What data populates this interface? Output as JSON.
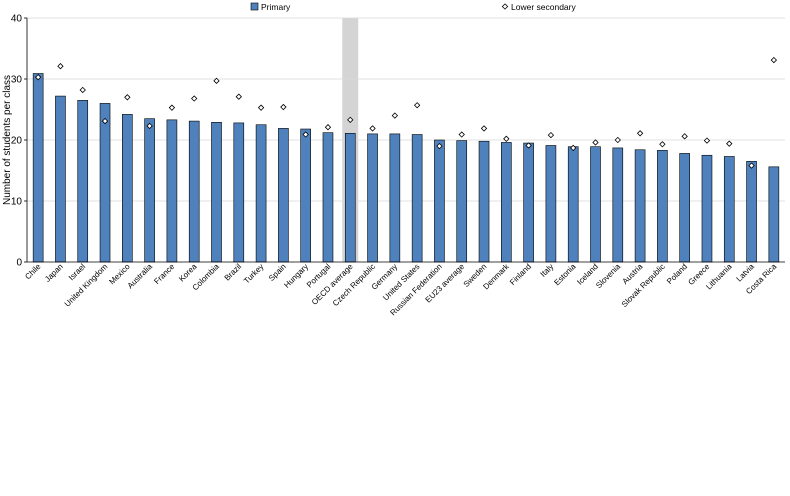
{
  "chart_data": {
    "type": "bar",
    "ylabel": "Number of students per class",
    "ylim": [
      0,
      40
    ],
    "yticks": [
      0,
      10,
      20,
      30,
      40
    ],
    "grid": true,
    "legend_position": "top",
    "highlight_category": "OECD average",
    "categories": [
      "Chile",
      "Japan",
      "Israel",
      "United Kingdom",
      "Mexico",
      "Australia",
      "France",
      "Korea",
      "Colombia",
      "Brazil",
      "Turkey",
      "Spain",
      "Hungary",
      "Portugal",
      "OECD average",
      "Czech Republic",
      "Germany",
      "United States",
      "Russian Federation",
      "EU23 average",
      "Sweden",
      "Denmark",
      "Finland",
      "Italy",
      "Estonia",
      "Iceland",
      "Slovenia",
      "Austria",
      "Slovak Republic",
      "Poland",
      "Greece",
      "Lithuania",
      "Latvia",
      "Costa Rica"
    ],
    "series": [
      {
        "name": "Primary",
        "kind": "bar",
        "color": "#4F81BD",
        "values": [
          30.9,
          27.2,
          26.5,
          26.0,
          24.2,
          23.5,
          23.3,
          23.1,
          22.9,
          22.8,
          22.5,
          21.9,
          21.8,
          21.2,
          21.1,
          21.0,
          21.0,
          20.9,
          20.0,
          19.9,
          19.8,
          19.6,
          19.5,
          19.1,
          18.9,
          18.9,
          18.7,
          18.4,
          18.3,
          17.8,
          17.5,
          17.3,
          16.5,
          15.6
        ]
      },
      {
        "name": "Lower secondary",
        "kind": "marker",
        "color": "#ffffff",
        "values": [
          30.3,
          32.1,
          28.2,
          23.1,
          27.0,
          22.3,
          25.3,
          26.8,
          29.7,
          27.1,
          25.3,
          25.4,
          20.9,
          22.1,
          23.3,
          21.9,
          24.0,
          25.7,
          19.0,
          20.9,
          21.9,
          20.2,
          19.1,
          20.8,
          18.7,
          19.6,
          20.0,
          21.1,
          19.3,
          20.6,
          19.9,
          19.4,
          15.8,
          33.1
        ]
      }
    ]
  }
}
